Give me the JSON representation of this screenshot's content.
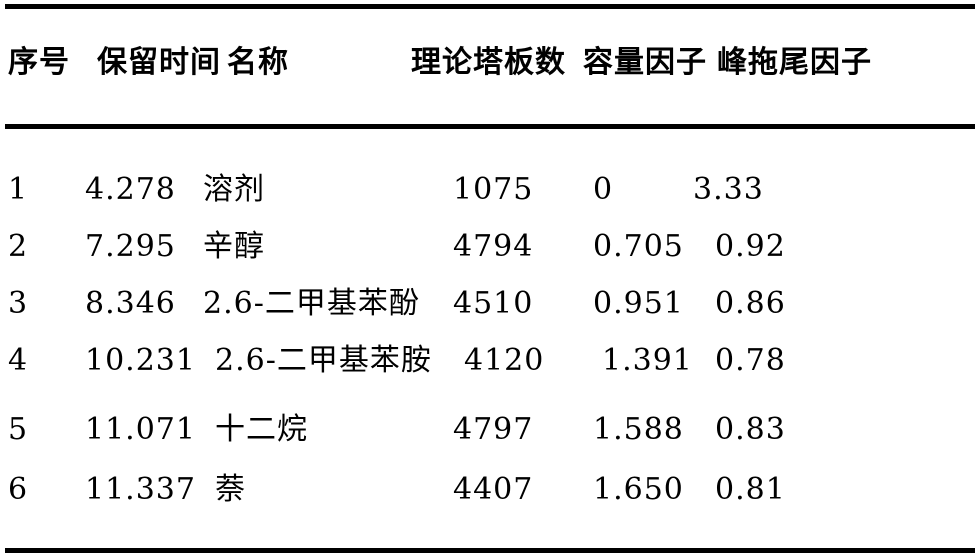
{
  "colors": {
    "background": "#ffffff",
    "text": "#000000",
    "rule": "#000000"
  },
  "table": {
    "headers": {
      "no": "序号",
      "retention": "保留时间",
      "name": "名称",
      "plates": "理论塔板数",
      "capacity": "容量因子",
      "tailing": "峰拖尾因子"
    },
    "rows": [
      {
        "no": "1",
        "retention": "4.278",
        "name": "溶剂",
        "plates": "1075",
        "capacity": "0",
        "tailing": "3.33"
      },
      {
        "no": "2",
        "retention": "7.295",
        "name": "辛醇",
        "plates": "4794",
        "capacity": "0.705",
        "tailing": "0.92"
      },
      {
        "no": "3",
        "retention": "8.346",
        "name": "2.6-二甲基苯酚",
        "plates": "4510",
        "capacity": "0.951",
        "tailing": "0.86"
      },
      {
        "no": "4",
        "retention": "10.231",
        "name": "2.6-二甲基苯胺",
        "plates": "4120",
        "capacity": "1.391",
        "tailing": "0.78"
      },
      {
        "no": "5",
        "retention": "11.071",
        "name": "十二烷",
        "plates": "4797",
        "capacity": "1.588",
        "tailing": "0.83"
      },
      {
        "no": "6",
        "retention": "11.337",
        "name": "萘",
        "plates": "4407",
        "capacity": "1.650",
        "tailing": "0.81"
      }
    ]
  }
}
